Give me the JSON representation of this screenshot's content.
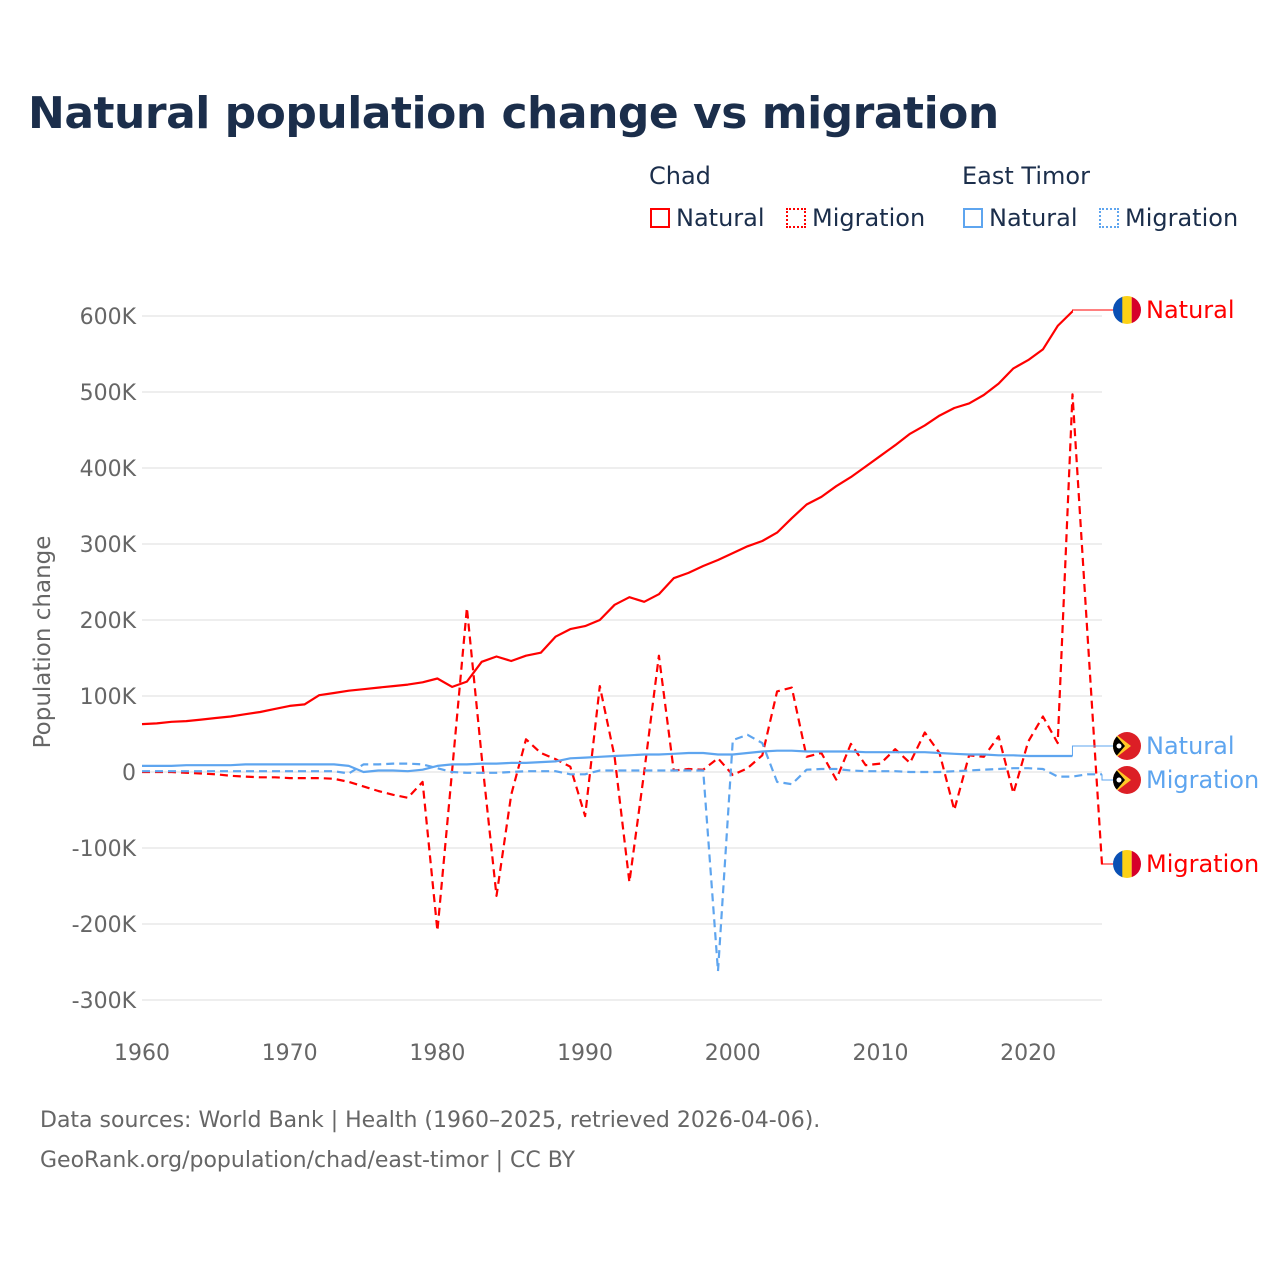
{
  "chart_data": {
    "type": "line",
    "title": "Natural population change vs migration",
    "ylabel": "Population change",
    "xlabel": "",
    "ylim": [
      -300000,
      600000
    ],
    "xlim": [
      1960,
      2025
    ],
    "y_ticks": [
      -300000,
      -200000,
      -100000,
      0,
      100000,
      200000,
      300000,
      400000,
      500000,
      600000
    ],
    "y_tick_labels": [
      "-300K",
      "-200K",
      "-100K",
      "0",
      "100K",
      "200K",
      "300K",
      "400K",
      "500K",
      "600K"
    ],
    "x_ticks": [
      1960,
      1970,
      1980,
      1990,
      2000,
      2010,
      2020
    ],
    "x_tick_labels": [
      "1960",
      "1970",
      "1980",
      "1990",
      "2000",
      "2010",
      "2020"
    ],
    "grid": true,
    "legend_position": "top-right",
    "legend_groups": [
      "Chad",
      "East Timor"
    ],
    "series": [
      {
        "name": "Natural",
        "country": "Chad",
        "color": "#ff0000",
        "dash": false,
        "start_year": 1960,
        "values_k": [
          63,
          64,
          66,
          67,
          69,
          71,
          73,
          76,
          79,
          83,
          87,
          89,
          101,
          104,
          107,
          109,
          111,
          113,
          115,
          118,
          123,
          112,
          119,
          145,
          152,
          146,
          153,
          157,
          178,
          188,
          192,
          200,
          220,
          230,
          224,
          234,
          255,
          262,
          271,
          279,
          288,
          297,
          304,
          315,
          334,
          352,
          362,
          376,
          388,
          402,
          416,
          430,
          445,
          456,
          469,
          479,
          485,
          496,
          511,
          531,
          542,
          556,
          587,
          606
        ]
      },
      {
        "name": "Migration",
        "country": "Chad",
        "color": "#ff0000",
        "dash": true,
        "start_year": 1960,
        "values_k": [
          0,
          0,
          0,
          -1,
          -2,
          -3,
          -5,
          -6,
          -7,
          -7,
          -8,
          -8,
          -8,
          -9,
          -13,
          -19,
          -25,
          -30,
          -34,
          -13,
          -209,
          3,
          216,
          20,
          -163,
          -30,
          43,
          25,
          17,
          7,
          -58,
          113,
          20,
          -145,
          0,
          153,
          2,
          4,
          3,
          18,
          -4,
          5,
          22,
          106,
          111,
          20,
          25,
          -10,
          37,
          9,
          11,
          30,
          12,
          52,
          25,
          -50,
          22,
          20,
          47,
          -28,
          40,
          73,
          38,
          497,
          187,
          -122
        ]
      },
      {
        "name": "Natural",
        "country": "East Timor",
        "color": "#5ea5ef",
        "dash": false,
        "start_year": 1960,
        "values_k": [
          8,
          8,
          8,
          9,
          9,
          9,
          9,
          10,
          10,
          10,
          10,
          10,
          10,
          10,
          8,
          0,
          2,
          2,
          1,
          3,
          8,
          10,
          10,
          11,
          11,
          12,
          12,
          13,
          14,
          18,
          19,
          20,
          21,
          22,
          23,
          23,
          24,
          25,
          25,
          23,
          23,
          25,
          27,
          28,
          28,
          27,
          27,
          27,
          27,
          26,
          26,
          26,
          26,
          26,
          25,
          24,
          23,
          23,
          22,
          22,
          21,
          21,
          21,
          21
        ]
      },
      {
        "name": "Migration",
        "country": "East Timor",
        "color": "#5ea5ef",
        "dash": true,
        "start_year": 1960,
        "values_k": [
          1,
          1,
          1,
          1,
          1,
          1,
          1,
          1,
          1,
          1,
          1,
          1,
          1,
          1,
          -2,
          10,
          10,
          11,
          11,
          10,
          5,
          0,
          -1,
          -1,
          -1,
          0,
          1,
          1,
          1,
          -3,
          -3,
          2,
          2,
          2,
          2,
          2,
          2,
          2,
          2,
          -262,
          42,
          49,
          38,
          -13,
          -16,
          3,
          4,
          4,
          2,
          1,
          1,
          1,
          0,
          0,
          0,
          1,
          2,
          3,
          4,
          5,
          5,
          4,
          -6,
          -6,
          -3,
          -3
        ]
      }
    ],
    "end_labels": [
      {
        "text": "Natural",
        "country": "Chad"
      },
      {
        "text": "Natural",
        "country": "East Timor"
      },
      {
        "text": "Migration",
        "country": "East Timor"
      },
      {
        "text": "Migration",
        "country": "Chad"
      }
    ]
  },
  "legend": {
    "chad": "Chad",
    "east_timor": "East Timor",
    "natural": "Natural",
    "migration": "Migration"
  },
  "footer": {
    "line1": "Data sources: World Bank | Health (1960–2025, retrieved 2026-04-06).",
    "line2": "GeoRank.org/population/chad/east-timor | CC BY"
  },
  "colors": {
    "chad": "#ff0000",
    "east_timor": "#5ea5ef",
    "title": "#1b2e4b"
  }
}
